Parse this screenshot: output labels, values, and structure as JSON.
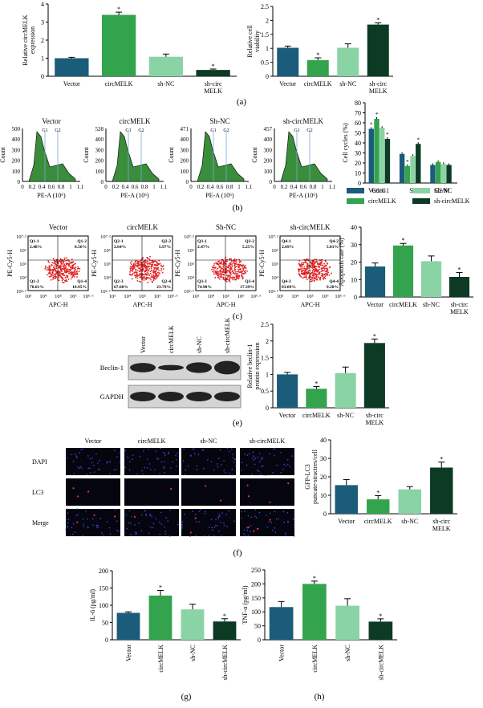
{
  "colors": {
    "vector": "#1a5c7a",
    "circ": "#34a34e",
    "shnc": "#8ad3a5",
    "sh": "#0d3a24",
    "flowFill": "#3a8d3a",
    "dotRed": "#e02020"
  },
  "panels": {
    "a": {
      "label": "(a)"
    },
    "b": {
      "label": "(b)"
    },
    "c": {
      "label": "(c)"
    },
    "e": {
      "label": "(e)"
    },
    "f": {
      "label": "(f)"
    },
    "g": {
      "label": "(g)"
    },
    "h": {
      "label": "(h)"
    }
  },
  "flow_b": {
    "xlabel": "PE-A (10⁶)",
    "ylabel": "Count",
    "gate_labels": [
      "G1",
      "G2"
    ],
    "plots": [
      {
        "title": "Vector",
        "ymax": "500",
        "yticks": [
          "500",
          "400",
          "300",
          "200",
          "100",
          "0"
        ]
      },
      {
        "title": "circMELK",
        "ymax": "528",
        "yticks": [
          "528",
          "400",
          "300",
          "200",
          "100",
          "0"
        ]
      },
      {
        "title": "Sh-NC",
        "ymax": "471",
        "yticks": [
          "471",
          "400",
          "300",
          "200",
          "100",
          "0"
        ]
      },
      {
        "title": "sh-circMELK",
        "ymax": "457",
        "yticks": [
          "457",
          "400",
          "300",
          "200",
          "100",
          "0"
        ]
      }
    ],
    "xticks": [
      "0",
      "0.2",
      "0.4",
      "0.6",
      "0.8",
      "1",
      "1.1"
    ]
  },
  "flow_c": {
    "xlabel": "APC-H",
    "ylabel": "PE-Cy5-H",
    "yticks": [
      "10⁷·²",
      "10⁶",
      "10⁵",
      "10⁴",
      "10²·⁶"
    ],
    "xticks": [
      "10³",
      "10⁴",
      "10⁵",
      "10⁶",
      "10⁶·⁶"
    ],
    "plots": [
      {
        "title": "Vector",
        "q1": "Q1-1",
        "q1v": "2.48%",
        "q2": "Q1-2",
        "q2v": "8.56%",
        "q3": "Q1-3",
        "q3v": "78.01%",
        "q4": "Q1-4",
        "q4v": "10.95%"
      },
      {
        "title": "circMELK",
        "q1": "Q2-1",
        "q1v": "2.64%",
        "q2": "Q2-2",
        "q2v": "5.97%",
        "q3": "Q2-3",
        "q3v": "67.60%",
        "q4": "Q2-4",
        "q4v": "23.79%"
      },
      {
        "title": "Sh-NC",
        "q1": "Q3-1",
        "q1v": "2.47%",
        "q2": "Q3-2",
        "q2v": "5.25%",
        "q3": "Q3-3",
        "q3v": "74.90%",
        "q4": "Q3-4",
        "q4v": "17.39%"
      },
      {
        "title": "sh-circMELK",
        "q1": "Q4-1",
        "q1v": "2.69%",
        "q2": "Q4-2",
        "q2v": "5.01%",
        "q3": "Q4-3",
        "q3v": "83.09%",
        "q4": "Q4-4",
        "q4v": "9.20%"
      }
    ]
  },
  "blot": {
    "lanes": [
      "Vector",
      "circMELK",
      "sh-NC",
      "sh-circMELK"
    ],
    "rows": [
      "Beclin-1",
      "GAPDH"
    ]
  },
  "fluor": {
    "cols": [
      "Vector",
      "circMELK",
      "sh-NC",
      "sh-circMELK"
    ],
    "rows": [
      "DAPI",
      "LC3",
      "Merge"
    ]
  },
  "legend_b": [
    {
      "name": "Vector",
      "color": "#1a5c7a"
    },
    {
      "name": "Sh-NC",
      "color": "#8ad3a5"
    },
    {
      "name": "circMELK",
      "color": "#34a34e"
    },
    {
      "name": "sh-circMELK",
      "color": "#0d3a24"
    }
  ],
  "chart_data": [
    {
      "id": "a1",
      "type": "bar",
      "ylabel": "Relative circMELK expression",
      "ylim": [
        0,
        4
      ],
      "yticks": [
        0,
        1,
        2,
        3,
        4
      ],
      "categories": [
        "Vector",
        "circMELK",
        "sh-NC",
        "sh-circ MELK"
      ],
      "values": [
        1.0,
        3.4,
        1.08,
        0.35
      ],
      "errors": [
        0.05,
        0.15,
        0.15,
        0.05
      ],
      "sig": [
        false,
        true,
        false,
        true
      ]
    },
    {
      "id": "a2",
      "type": "bar",
      "ylabel": "Relative cell viability",
      "ylim": [
        0,
        2.5
      ],
      "yticks": [
        0,
        0.5,
        1,
        1.5,
        2,
        2.5
      ],
      "categories": [
        "Vector",
        "circMELK",
        "sh-NC",
        "sh-circ MELK"
      ],
      "values": [
        1.02,
        0.58,
        1.02,
        1.85
      ],
      "errors": [
        0.06,
        0.08,
        0.14,
        0.06
      ],
      "sig": [
        false,
        true,
        false,
        true
      ]
    },
    {
      "id": "b",
      "type": "bar",
      "ylabel": "Cell cycles (%)",
      "ylim": [
        0,
        80
      ],
      "yticks": [
        0,
        10,
        20,
        30,
        40,
        50,
        60,
        70,
        80
      ],
      "categories": [
        "G0/G1",
        "S",
        "G2/M"
      ],
      "series": [
        {
          "name": "Vector",
          "values": [
            54,
            29,
            18
          ]
        },
        {
          "name": "circMELK",
          "values": [
            64,
            17,
            21
          ]
        },
        {
          "name": "Sh-NC",
          "values": [
            55,
            27,
            19
          ]
        },
        {
          "name": "sh-circMELK",
          "values": [
            44,
            39,
            18
          ]
        }
      ],
      "sig": [
        [
          true,
          false,
          false
        ],
        [
          true,
          true,
          false
        ],
        [
          false,
          false,
          false
        ],
        [
          true,
          true,
          false
        ]
      ]
    },
    {
      "id": "c",
      "type": "bar",
      "ylabel": "Apoptosis rate (%)",
      "ylim": [
        0,
        40
      ],
      "yticks": [
        0,
        10,
        20,
        30,
        40
      ],
      "categories": [
        "Vector",
        "circMELK",
        "sh-NC",
        "sh-circ MELK"
      ],
      "values": [
        17.5,
        29.5,
        20.5,
        11.5
      ],
      "errors": [
        2,
        1.2,
        3,
        2.5
      ],
      "sig": [
        false,
        true,
        false,
        true
      ]
    },
    {
      "id": "e",
      "type": "bar",
      "ylabel": "Relative beclin-1 protein expression",
      "ylim": [
        0,
        2.5
      ],
      "yticks": [
        0,
        0.5,
        1,
        1.5,
        2,
        2.5
      ],
      "categories": [
        "Vector",
        "circMELK",
        "sh-NC",
        "sh-circ MELK"
      ],
      "values": [
        1.0,
        0.57,
        1.04,
        1.94
      ],
      "errors": [
        0.06,
        0.07,
        0.18,
        0.12
      ],
      "sig": [
        false,
        true,
        false,
        true
      ]
    },
    {
      "id": "f",
      "type": "bar",
      "ylabel": "GFP-LC3 puncate-stractres/cell",
      "ylim": [
        0,
        40
      ],
      "yticks": [
        0,
        10,
        20,
        30,
        40
      ],
      "categories": [
        "Vector",
        "circMELK",
        "sh-NC",
        "sh-circ MELK"
      ],
      "values": [
        15.5,
        7.8,
        13.2,
        25
      ],
      "errors": [
        3,
        2,
        1.5,
        3
      ],
      "sig": [
        false,
        true,
        false,
        true
      ]
    },
    {
      "id": "g",
      "type": "bar",
      "ylabel": "IL-6 (pg/ml)",
      "ylim": [
        0,
        200
      ],
      "yticks": [
        0,
        50,
        100,
        150,
        200
      ],
      "categories": [
        "Vector",
        "circMELK",
        "sh-NC",
        "sh-circMELK"
      ],
      "values": [
        78,
        128,
        88,
        53
      ],
      "errors": [
        3,
        15,
        15,
        8
      ],
      "sig": [
        false,
        true,
        false,
        true
      ]
    },
    {
      "id": "h",
      "type": "bar",
      "ylabel": "TNF-α (pg/ml)",
      "ylim": [
        0,
        250
      ],
      "yticks": [
        0,
        50,
        100,
        150,
        200,
        250
      ],
      "categories": [
        "Vector",
        "circMELK",
        "sh-NC",
        "sh-circMELK"
      ],
      "values": [
        117,
        200,
        122,
        65
      ],
      "errors": [
        20,
        10,
        25,
        10
      ],
      "sig": [
        false,
        true,
        false,
        true
      ]
    }
  ]
}
